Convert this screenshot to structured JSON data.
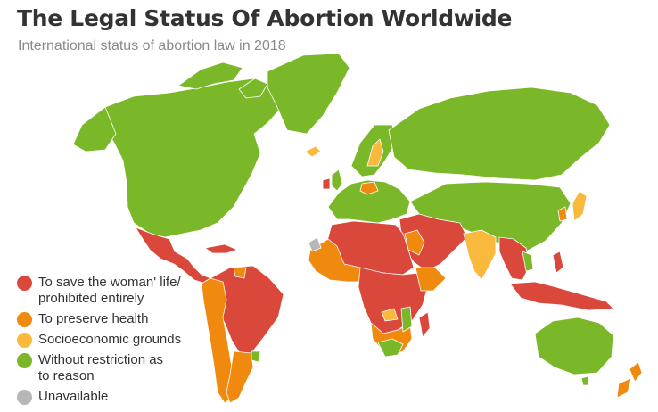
{
  "header": {
    "title": "The Legal Status Of Abortion Worldwide",
    "subtitle": "International status of abortion law in 2018"
  },
  "colors": {
    "save_life": "#d9483b",
    "preserve_health": "#f08a0e",
    "socioeconomic": "#f9b93c",
    "without_restriction": "#7ab829",
    "unavailable": "#b7b7b7",
    "background": "#ffffff"
  },
  "legend": {
    "items": [
      {
        "label": "To save the woman' life/\nprohibited entirely",
        "color": "#d9483b"
      },
      {
        "label": "To preserve health",
        "color": "#f08a0e"
      },
      {
        "label": "Socioeconomic grounds",
        "color": "#f9b93c"
      },
      {
        "label": "Without restriction as\nto reason",
        "color": "#7ab829"
      },
      {
        "label": "Unavailable",
        "color": "#b7b7b7"
      }
    ]
  }
}
